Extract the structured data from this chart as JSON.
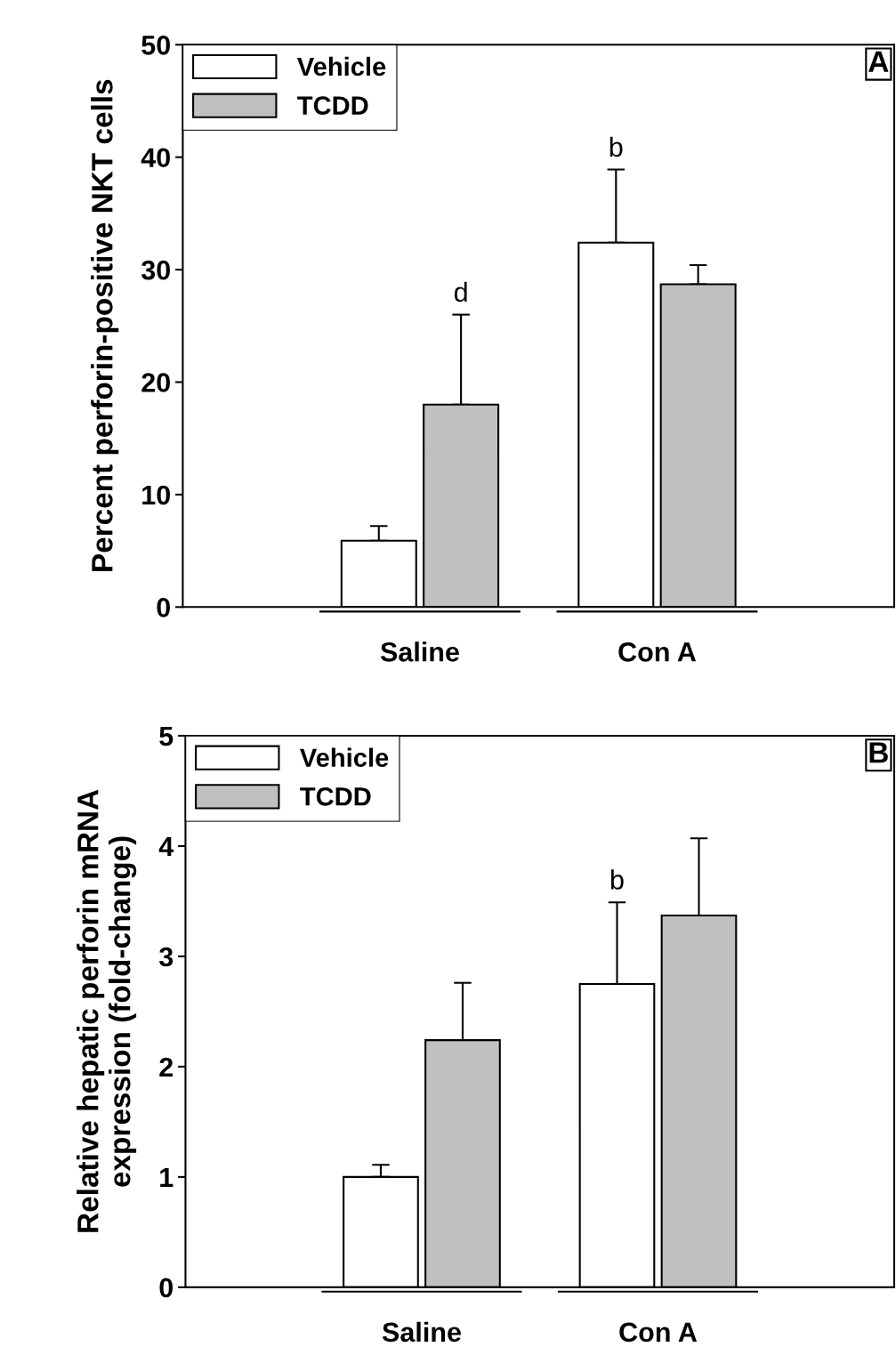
{
  "chart_data": [
    {
      "type": "bar",
      "ylabel": "Percent perforin-positive NKT cells",
      "categories": [
        "Saline",
        "Con A"
      ],
      "ylim": [
        0,
        50
      ],
      "yticks": [
        0,
        10,
        20,
        30,
        40,
        50
      ],
      "grid": false,
      "legend": "top left",
      "series": [
        {
          "name": "Vehicle",
          "color": "#ffffff",
          "values": [
            5.9,
            32.4
          ],
          "errors": [
            [
              5.9,
              7.2
            ],
            [
              32.4,
              38.9
            ]
          ]
        },
        {
          "name": "TCDD",
          "color": "#c0c0c0",
          "values": [
            18.0,
            28.7
          ],
          "errors": [
            [
              18.0,
              26.0
            ],
            [
              28.7,
              30.4
            ]
          ]
        }
      ],
      "annotations": [
        "A",
        "d",
        "b"
      ]
    },
    {
      "type": "bar",
      "ylabel": "Relative hepatic perforin mRNA\nexpression (fold-change)",
      "categories": [
        "Saline",
        "Con A"
      ],
      "ylim": [
        0,
        5
      ],
      "yticks": [
        0,
        1,
        2,
        3,
        4,
        5
      ],
      "grid": false,
      "legend": "top left",
      "series": [
        {
          "name": "Vehicle",
          "color": "#ffffff",
          "values": [
            1.0,
            2.75
          ],
          "errors": [
            [
              1.0,
              1.11
            ],
            [
              2.75,
              3.49
            ]
          ]
        },
        {
          "name": "TCDD",
          "color": "#c0c0c0",
          "values": [
            2.24,
            3.37
          ],
          "errors": [
            [
              2.24,
              2.76
            ],
            [
              3.37,
              4.07
            ]
          ]
        }
      ],
      "annotations": [
        "B",
        "b"
      ]
    }
  ]
}
